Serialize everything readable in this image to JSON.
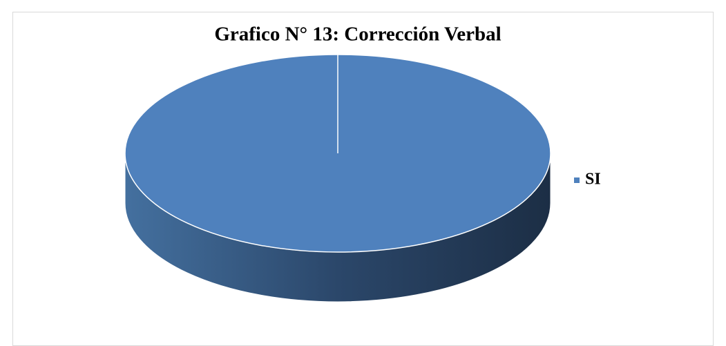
{
  "chart_data": {
    "type": "pie",
    "title": "Grafico N° 13: Corrección Verbal",
    "categories": [
      "SI"
    ],
    "values": [
      100
    ],
    "colors": [
      "#4f81bd"
    ],
    "legend": "right"
  }
}
